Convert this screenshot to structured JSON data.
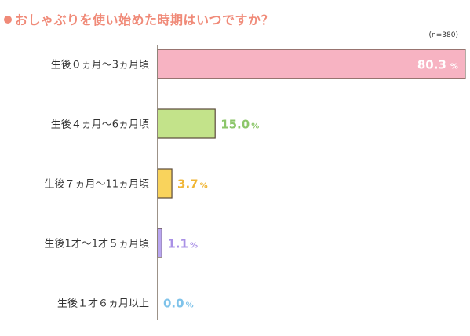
{
  "chart_data": {
    "type": "bar",
    "orientation": "horizontal",
    "title": "おしゃぶりを使い始めた時期はいつですか？",
    "sample_size": "(n=380)",
    "unit": "%",
    "categories": [
      "生後０ヵ月〜3ヵ月頃",
      "生後４ヵ月〜6ヵ月頃",
      "生後７ヵ月〜11ヵ月頃",
      "生後1才〜1才５ヵ月頃",
      "生後１才６ヵ月以上"
    ],
    "values": [
      80.3,
      15.0,
      3.7,
      1.1,
      0.0
    ],
    "value_labels": [
      "80.3",
      "15.0",
      "3.7",
      "1.1",
      "0.0"
    ],
    "bar_colors": [
      "#f7b3c2",
      "#c3e38a",
      "#f9d35c",
      "#b9a6f0",
      "#a7d4f2"
    ],
    "label_colors": [
      "#ffffff",
      "#8cc66a",
      "#f0b636",
      "#a990e6",
      "#7fc3ea"
    ],
    "xlim": [
      0,
      100
    ],
    "grid": false,
    "legend": "none"
  }
}
